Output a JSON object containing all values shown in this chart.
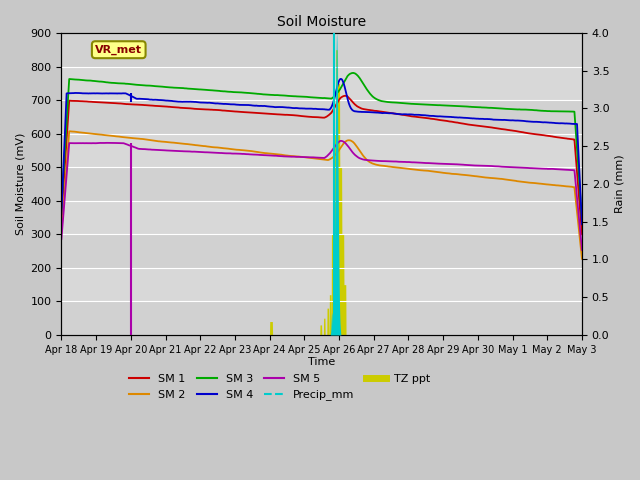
{
  "title": "Soil Moisture",
  "xlabel": "Time",
  "ylabel_left": "Soil Moisture (mV)",
  "ylabel_right": "Rain (mm)",
  "ylim_left": [
    0,
    900
  ],
  "ylim_right": [
    0.0,
    4.0
  ],
  "fig_bg": "#c8c8c8",
  "plot_bg": "#d8d8d8",
  "colors": {
    "SM1": "#cc0000",
    "SM2": "#dd8800",
    "SM3": "#00aa00",
    "SM4": "#0000cc",
    "SM5": "#aa00aa",
    "Precip_mm": "#00cccc",
    "TZ_ppt": "#cccc00"
  },
  "annotation_text": "VR_met",
  "annotation_box_color": "#ffff88",
  "annotation_text_color": "#880000",
  "annotation_border_color": "#888800",
  "tick_labels": [
    "Apr 18",
    "Apr 19",
    "Apr 20",
    "Apr 21",
    "Apr 22",
    "Apr 23",
    "Apr 24",
    "Apr 25",
    "Apr 26",
    "Apr 27",
    "Apr 28",
    "Apr 29",
    "Apr 30",
    "May 1",
    "May 2",
    "May 3"
  ]
}
